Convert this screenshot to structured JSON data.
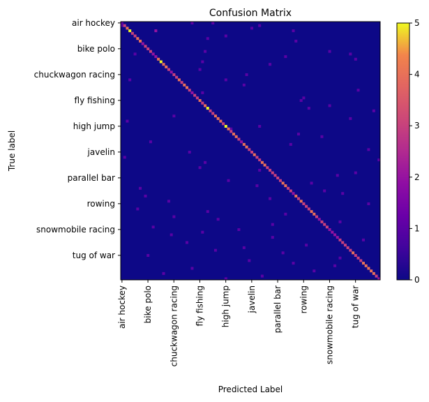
{
  "chart_data": {
    "type": "heatmap",
    "title": "Confusion Matrix",
    "xlabel": "Predicted Label",
    "ylabel": "True label",
    "n_classes": 100,
    "tick_labels": [
      "air hockey",
      "bike polo",
      "chuckwagon racing",
      "fly fishing",
      "high jump",
      "javelin",
      "parallel bar",
      "rowing",
      "snowmobile racing",
      "tug of war"
    ],
    "tick_indices": [
      0,
      10,
      20,
      30,
      40,
      50,
      60,
      70,
      80,
      90
    ],
    "colorbar": {
      "min": 0,
      "max": 5,
      "ticks": [
        "0",
        "1",
        "2",
        "3",
        "4",
        "5"
      ],
      "colormap": "plasma"
    },
    "diagonal_values": [
      1,
      3,
      4,
      5,
      3,
      3,
      4,
      4,
      2,
      3,
      3,
      3,
      2,
      2,
      4,
      5,
      4,
      4,
      3,
      2,
      3,
      3,
      4,
      3,
      4,
      4,
      3,
      2,
      3,
      3,
      4,
      3,
      4,
      5,
      3,
      3,
      4,
      4,
      4,
      3,
      5,
      4,
      3,
      4,
      4,
      3,
      2,
      4,
      4,
      3,
      3,
      4,
      3,
      3,
      4,
      4,
      3,
      3,
      3,
      3,
      3,
      3,
      4,
      4,
      3,
      3,
      2,
      4,
      3,
      4,
      3,
      3,
      3,
      4,
      4,
      3,
      2,
      3,
      3,
      3,
      2,
      2,
      2,
      2,
      3,
      3,
      3,
      3,
      3,
      4,
      3,
      3,
      3,
      4,
      4,
      4,
      4,
      4,
      3,
      2
    ],
    "off_diagonal": [
      [
        0,
        27,
        1
      ],
      [
        0,
        35,
        1
      ],
      [
        1,
        0,
        1
      ],
      [
        1,
        53,
        1
      ],
      [
        2,
        50,
        1
      ],
      [
        3,
        66,
        1
      ],
      [
        5,
        40,
        1
      ],
      [
        7,
        67,
        1
      ],
      [
        6,
        33,
        1
      ],
      [
        11,
        32,
        1
      ],
      [
        11,
        80,
        1
      ],
      [
        12,
        5,
        1
      ],
      [
        13,
        63,
        1
      ],
      [
        12,
        88,
        1
      ],
      [
        14,
        90,
        1
      ],
      [
        16,
        57,
        1
      ],
      [
        18,
        30,
        1
      ],
      [
        20,
        48,
        1
      ],
      [
        22,
        3,
        1
      ],
      [
        22,
        40,
        1
      ],
      [
        24,
        47,
        1
      ],
      [
        26,
        91,
        1
      ],
      [
        27,
        31,
        1
      ],
      [
        29,
        70,
        1
      ],
      [
        30,
        69,
        1
      ],
      [
        32,
        80,
        1
      ],
      [
        33,
        72,
        1
      ],
      [
        34,
        97,
        1
      ],
      [
        36,
        20,
        1
      ],
      [
        37,
        88,
        1
      ],
      [
        38,
        2,
        1
      ],
      [
        40,
        53,
        1
      ],
      [
        41,
        42,
        1
      ],
      [
        44,
        77,
        1
      ],
      [
        46,
        11,
        1
      ],
      [
        47,
        65,
        1
      ],
      [
        49,
        95,
        1
      ],
      [
        50,
        26,
        1
      ],
      [
        52,
        1,
        1
      ],
      [
        53,
        99,
        1
      ],
      [
        54,
        32,
        1
      ],
      [
        56,
        30,
        1
      ],
      [
        57,
        53,
        1
      ],
      [
        58,
        90,
        1
      ],
      [
        61,
        41,
        1
      ],
      [
        62,
        73,
        1
      ],
      [
        63,
        52,
        1
      ],
      [
        64,
        7,
        1
      ],
      [
        65,
        78,
        1
      ],
      [
        66,
        85,
        1
      ],
      [
        68,
        57,
        1
      ],
      [
        69,
        18,
        1
      ],
      [
        70,
        95,
        1
      ],
      [
        72,
        6,
        1
      ],
      [
        73,
        33,
        1
      ],
      [
        74,
        63,
        1
      ],
      [
        76,
        37,
        1
      ],
      [
        77,
        84,
        1
      ],
      [
        78,
        58,
        1
      ],
      [
        79,
        12,
        1
      ],
      [
        80,
        45,
        1
      ],
      [
        81,
        31,
        1
      ],
      [
        82,
        19,
        1
      ],
      [
        84,
        93,
        1
      ],
      [
        85,
        25,
        1
      ],
      [
        86,
        71,
        1
      ],
      [
        87,
        47,
        1
      ],
      [
        88,
        36,
        1
      ],
      [
        89,
        62,
        1
      ],
      [
        90,
        10,
        1
      ],
      [
        91,
        84,
        1
      ],
      [
        92,
        49,
        1
      ],
      [
        93,
        66,
        1
      ],
      [
        94,
        82,
        1
      ],
      [
        95,
        27,
        1
      ],
      [
        96,
        74,
        1
      ],
      [
        97,
        16,
        1
      ],
      [
        98,
        54,
        1
      ],
      [
        99,
        40,
        1
      ],
      [
        3,
        13,
        2
      ],
      [
        15,
        31,
        1
      ],
      [
        43,
        68,
        1
      ],
      [
        59,
        83,
        1
      ],
      [
        67,
        9,
        1
      ],
      [
        75,
        20,
        1
      ],
      [
        83,
        58,
        1
      ]
    ]
  }
}
